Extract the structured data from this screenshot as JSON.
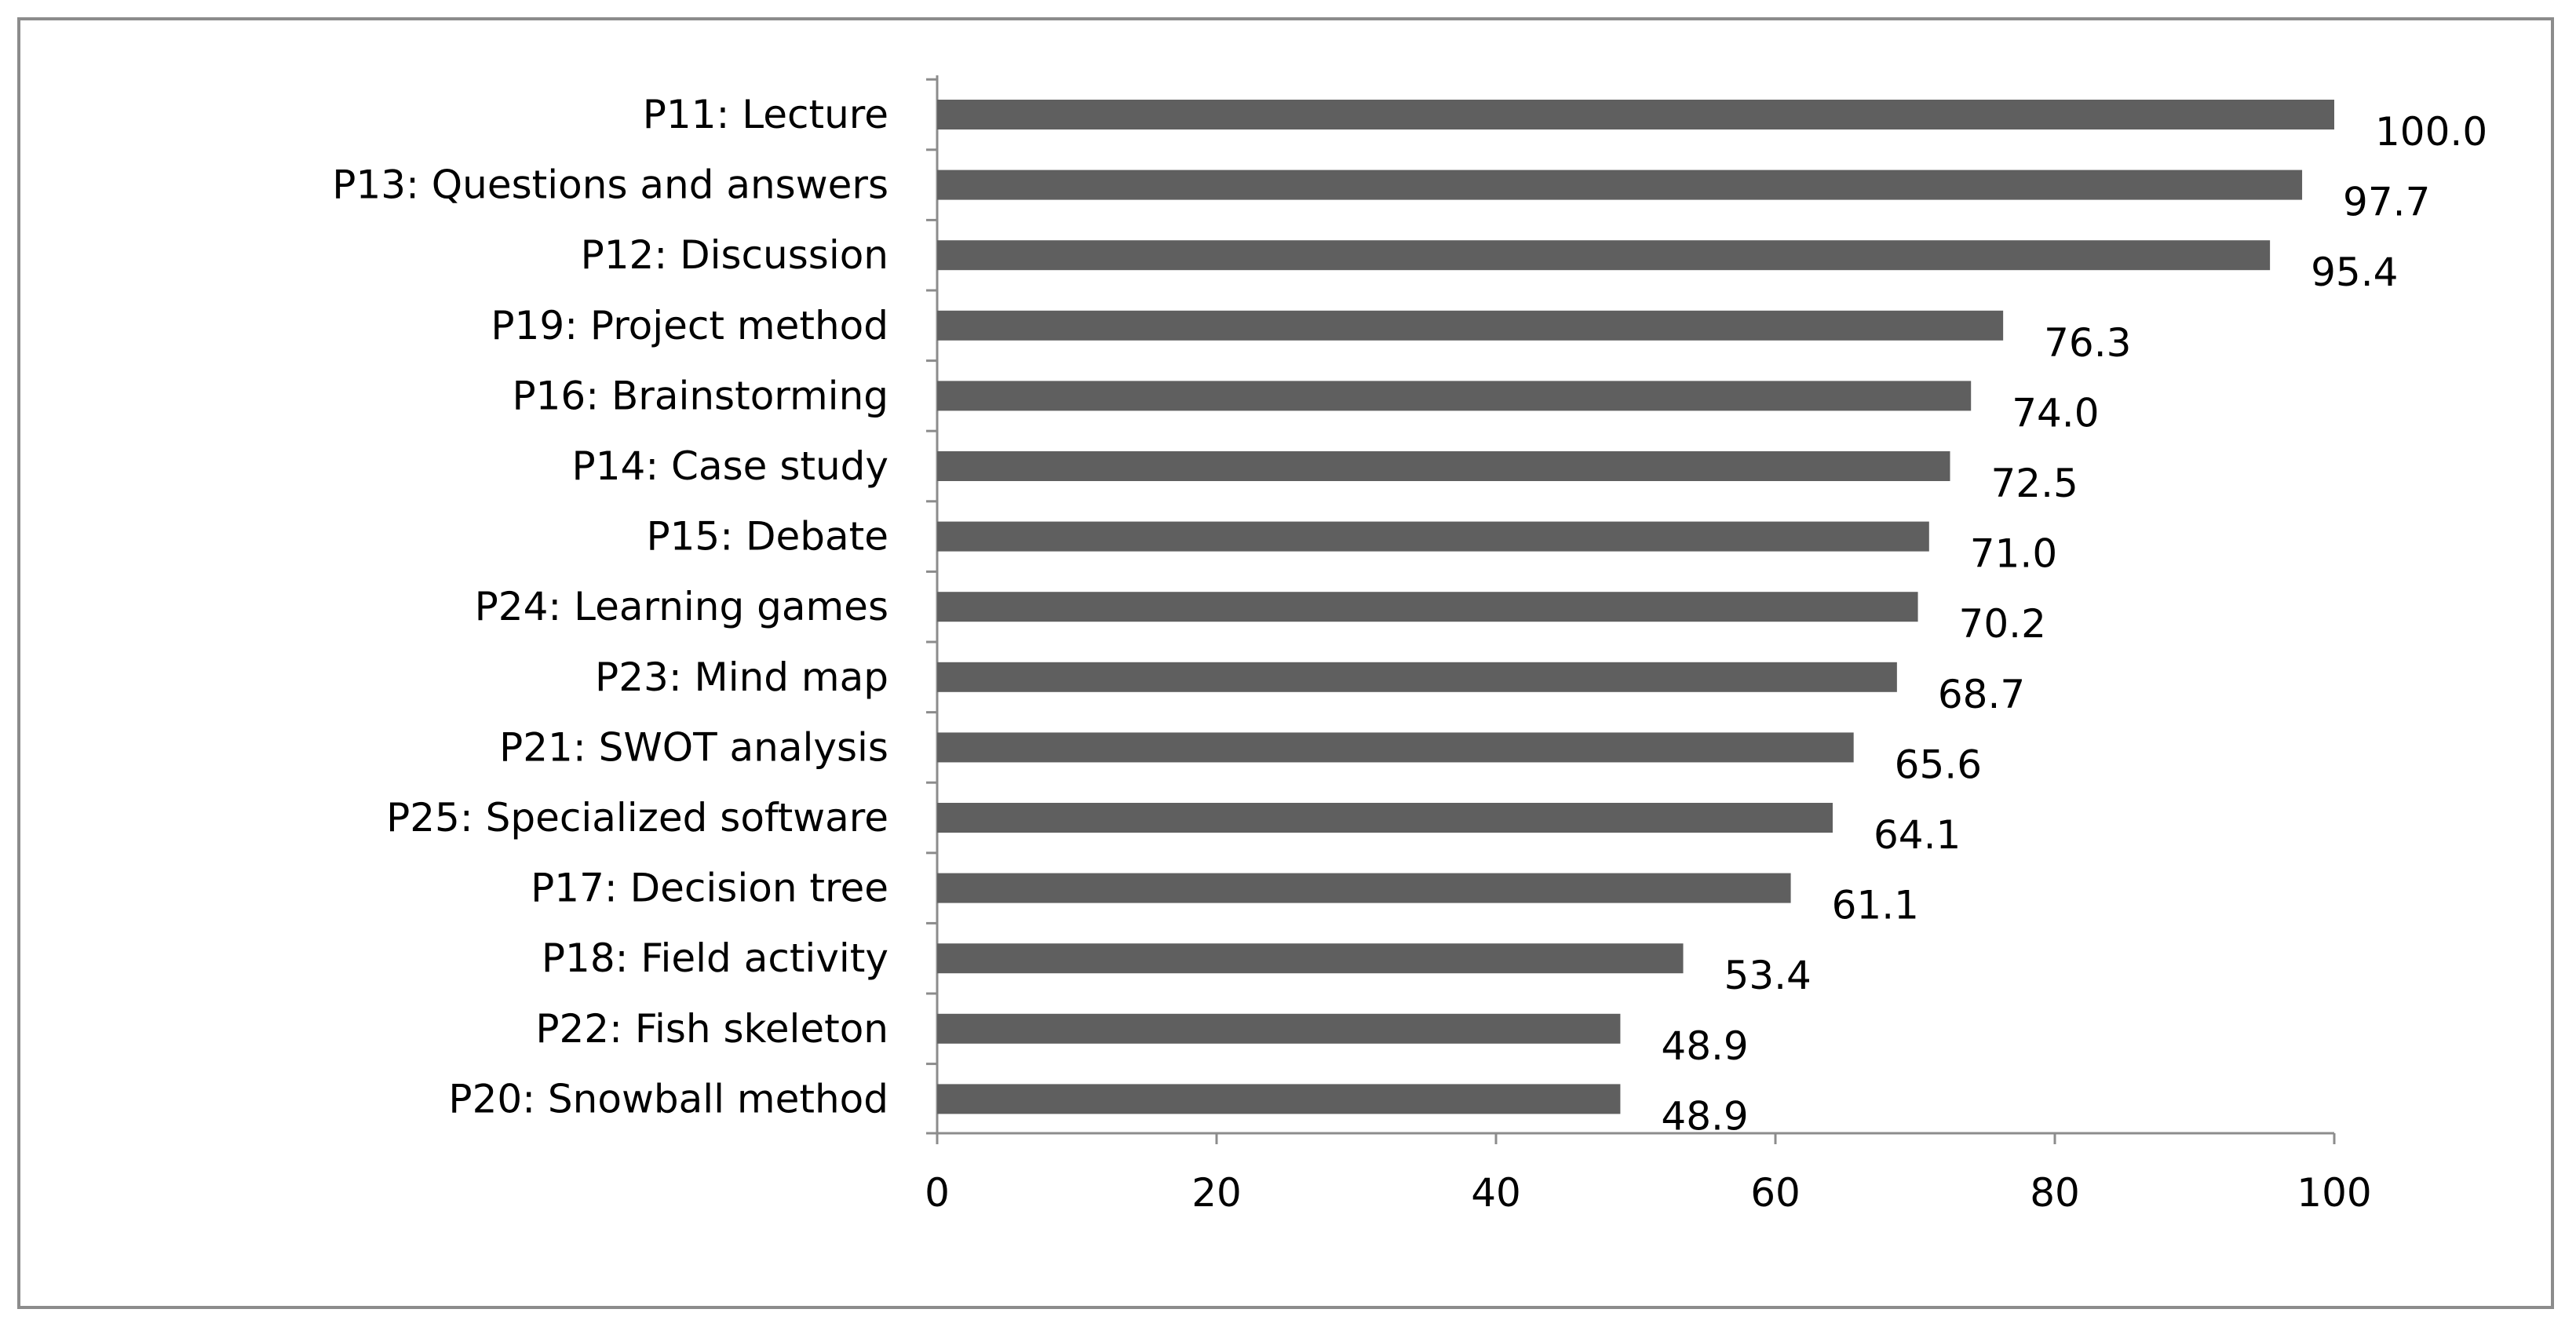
{
  "chart_data": {
    "type": "bar",
    "orientation": "horizontal",
    "title": "",
    "xlabel": "",
    "ylabel": "",
    "xlim": [
      0,
      100
    ],
    "x_ticks": [
      "0",
      "20",
      "40",
      "60",
      "80",
      "100"
    ],
    "grid": false,
    "legend": "none",
    "bar_color": "#5f5f5f",
    "categories": [
      "P11: Lecture",
      "P13: Questions and answers",
      "P12: Discussion",
      "P19: Project method",
      "P16: Brainstorming",
      "P14: Case study",
      "P15: Debate",
      "P24: Learning games",
      "P23: Mind map",
      "P21: SWOT analysis",
      "P25: Specialized software",
      "P17: Decision tree",
      "P18: Field activity",
      "P22: Fish skeleton",
      "P20: Snowball method"
    ],
    "values": [
      100.0,
      97.7,
      95.4,
      76.3,
      74.0,
      72.5,
      71.0,
      70.2,
      68.7,
      65.6,
      64.1,
      61.1,
      53.4,
      48.9,
      48.9
    ],
    "value_labels": [
      "100.0",
      "97.7",
      "95.4",
      "76.3",
      "74.0",
      "72.5",
      "71.0",
      "70.2",
      "68.7",
      "65.6",
      "64.1",
      "61.1",
      "53.4",
      "48.9",
      "48.9"
    ]
  }
}
